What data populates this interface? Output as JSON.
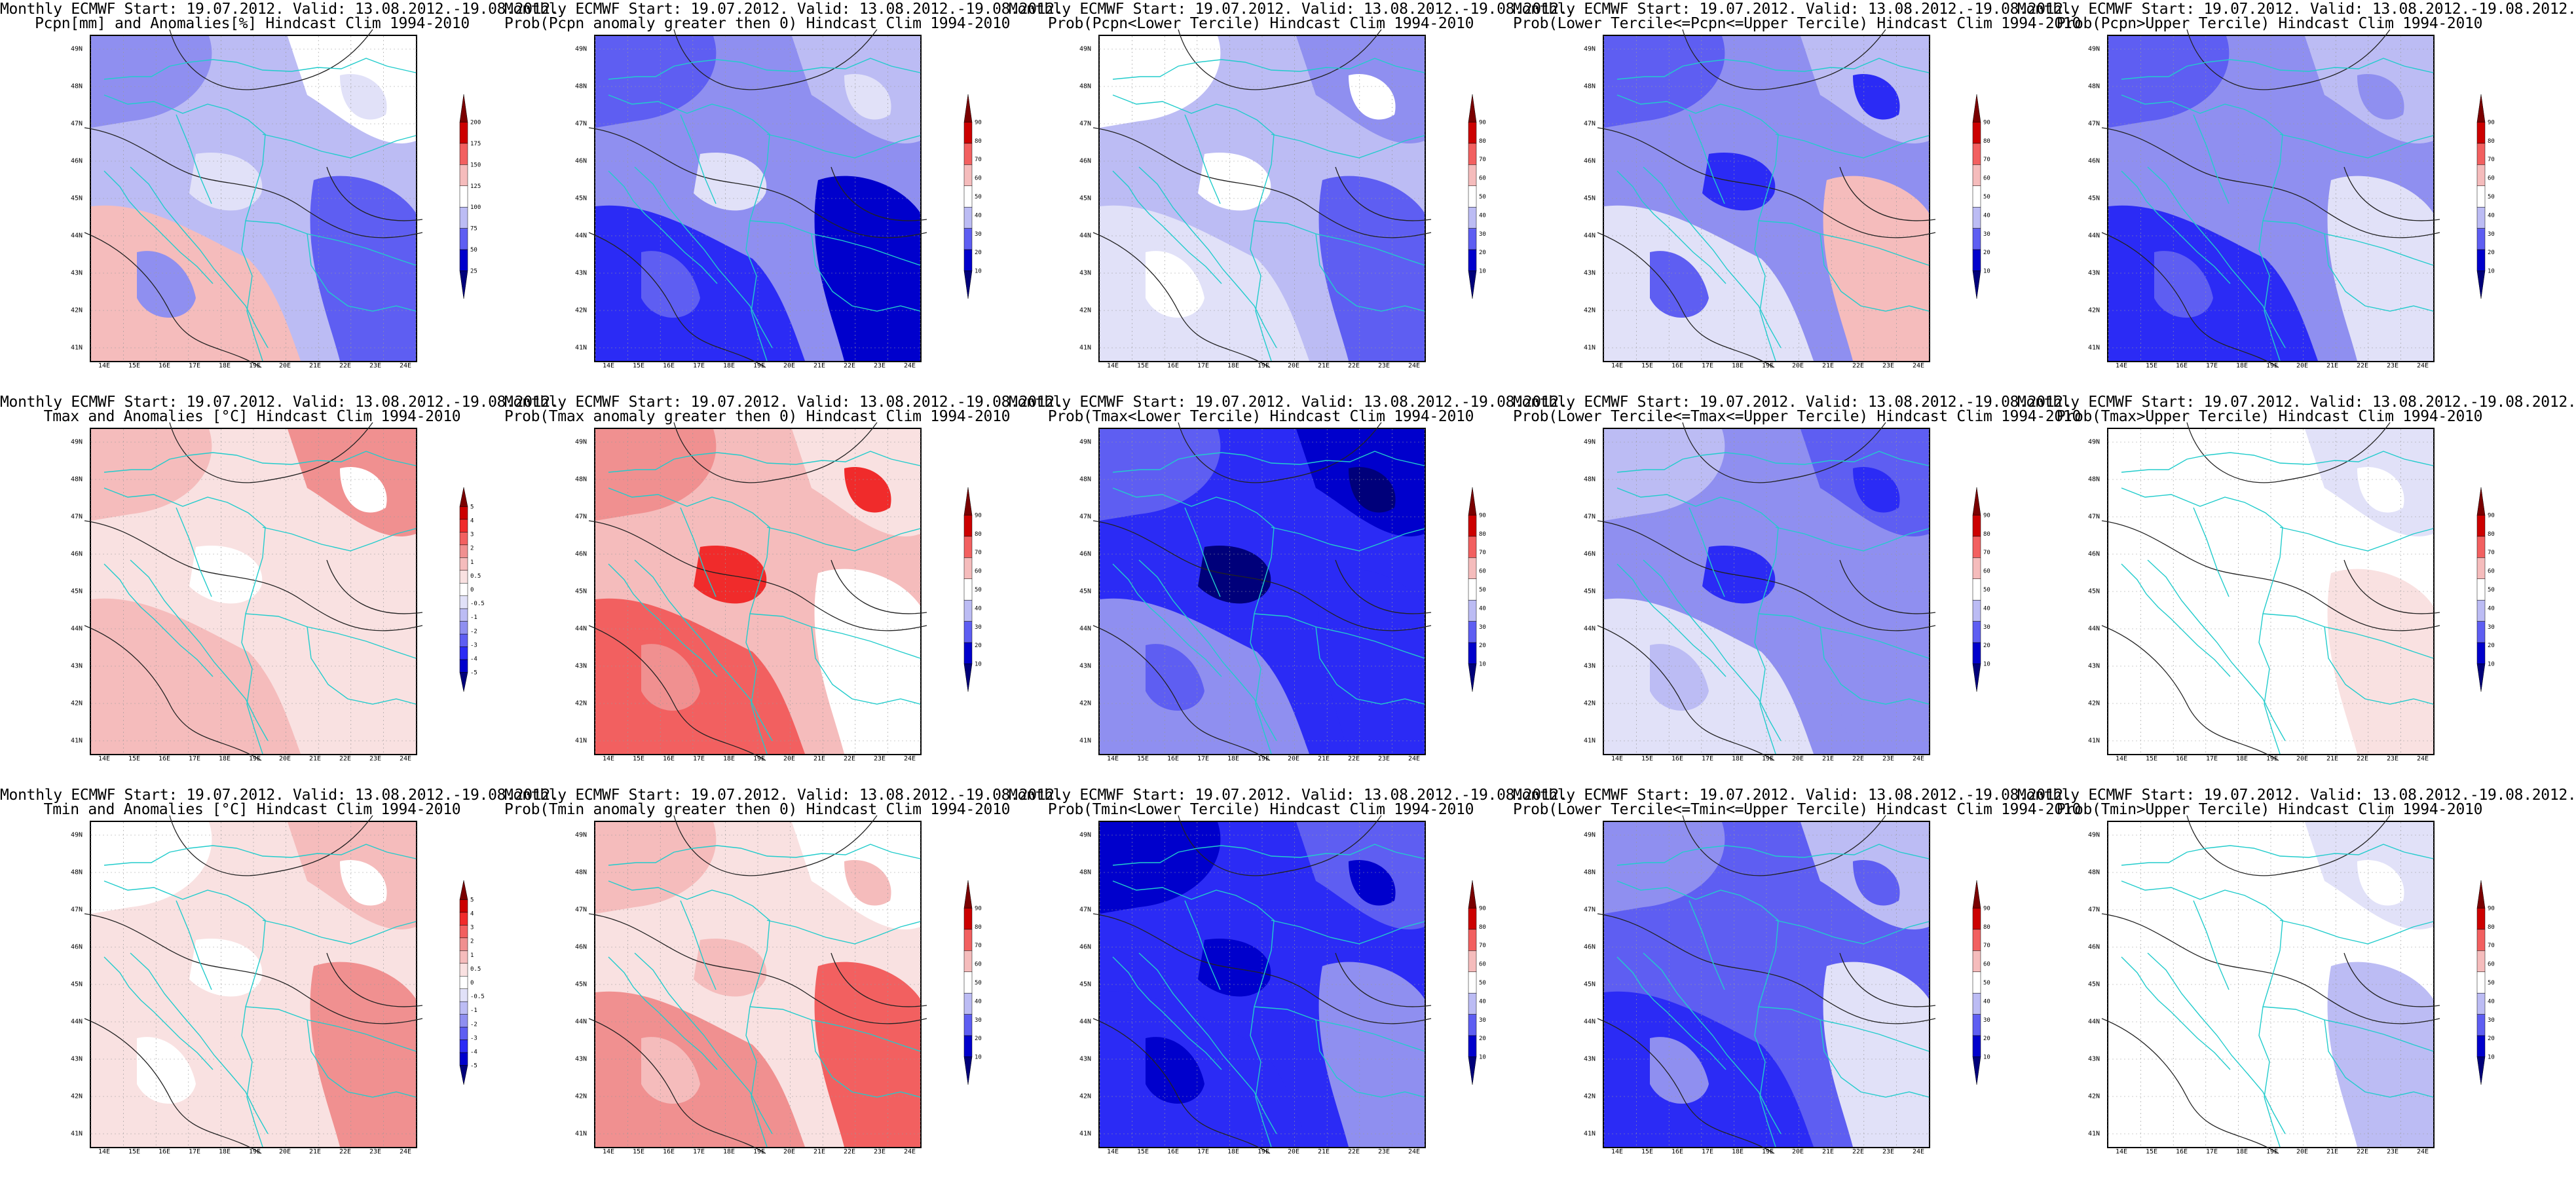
{
  "colors": {
    "blues": [
      "#00007a",
      "#0000cc",
      "#2b2bf5",
      "#5e5ef2",
      "#8f8ff0",
      "#bcbcf4",
      "#e1e1f8"
    ],
    "reds": [
      "#7a0000",
      "#cc0000",
      "#f02b2b",
      "#f26060",
      "#f09090",
      "#f5bcbc",
      "#f9e1e1"
    ],
    "coast": "#22cccc",
    "contour": "#222222"
  },
  "map": {
    "lon_labels": [
      "14E",
      "15E",
      "16E",
      "17E",
      "18E",
      "19E",
      "20E",
      "21E",
      "22E",
      "23E",
      "24E"
    ],
    "lat_labels": [
      "49N",
      "48N",
      "47N",
      "46N",
      "45N",
      "44N",
      "43N",
      "42N",
      "41N"
    ]
  },
  "panels": [
    {
      "id": "pcpn-anom",
      "title_line1": "Monthly ECMWF Start: 19.07.2012. Valid: 13.08.2012.-19.08.2012.",
      "title_line2": "Pcpn[mm] and Anomalies[%] Hindcast Clim 1994-2010",
      "bar": [
        "#00007a",
        "#0000cc",
        "#5e5ef2",
        "#bcbcf4",
        "#ffffff",
        "#f5bcbc",
        "#f26060",
        "#cc0000",
        "#7a0000"
      ],
      "bar_labels": [
        "200",
        "175",
        "150",
        "125",
        "100",
        "75",
        "50",
        "25"
      ],
      "palette": [
        "#bcbcf4",
        "#8f8ff0",
        "#ffffff",
        "#f5bcbc",
        "#5e5ef2",
        "#e1e1f8"
      ]
    },
    {
      "id": "pcpn-prob-pos",
      "title_line1": "Monthly ECMWF Start: 19.07.2012. Valid: 13.08.2012.-19.08.2012.",
      "title_line2": "Prob(Pcpn anomaly greater then 0) Hindcast Clim 1994-2010",
      "bar": [
        "#00007a",
        "#0000cc",
        "#5e5ef2",
        "#bcbcf4",
        "#ffffff",
        "#f5bcbc",
        "#f26060",
        "#cc0000",
        "#7a0000"
      ],
      "bar_labels": [
        "90",
        "80",
        "70",
        "60",
        "50",
        "40",
        "30",
        "20",
        "10"
      ],
      "palette": [
        "#8f8ff0",
        "#5e5ef2",
        "#bcbcf4",
        "#2b2bf5",
        "#0000cc",
        "#e1e1f8"
      ]
    },
    {
      "id": "pcpn-lower",
      "title_line1": "Monthly ECMWF Start: 19.07.2012. Valid: 13.08.2012.-19.08.2012.",
      "title_line2": "Prob(Pcpn<Lower Tercile) Hindcast Clim 1994-2010",
      "bar": [
        "#00007a",
        "#0000cc",
        "#5e5ef2",
        "#bcbcf4",
        "#ffffff",
        "#f5bcbc",
        "#f26060",
        "#cc0000",
        "#7a0000"
      ],
      "bar_labels": [
        "90",
        "80",
        "70",
        "60",
        "50",
        "40",
        "30",
        "20",
        "10"
      ],
      "palette": [
        "#bcbcf4",
        "#ffffff",
        "#8f8ff0",
        "#e1e1f8",
        "#5e5ef2",
        "#ffffff"
      ]
    },
    {
      "id": "pcpn-middle",
      "title_line1": "Monthly ECMWF Start: 19.07.2012. Valid: 13.08.2012.-19.08.2012.",
      "title_line2": "Prob(Lower Tercile<=Pcpn<=Upper Tercile) Hindcast Clim 1994-2010",
      "bar": [
        "#00007a",
        "#0000cc",
        "#5e5ef2",
        "#bcbcf4",
        "#ffffff",
        "#f5bcbc",
        "#f26060",
        "#cc0000",
        "#7a0000"
      ],
      "bar_labels": [
        "90",
        "80",
        "70",
        "60",
        "50",
        "40",
        "30",
        "20",
        "10"
      ],
      "palette": [
        "#8f8ff0",
        "#5e5ef2",
        "#bcbcf4",
        "#e1e1f8",
        "#f5bcbc",
        "#2b2bf5"
      ]
    },
    {
      "id": "pcpn-upper",
      "title_line1": "Monthly ECMWF Start: 19.07.2012. Valid: 13.08.2012.-19.08.2012.",
      "title_line2": "Prob(Pcpn>Upper Tercile) Hindcast Clim 1994-2010",
      "bar": [
        "#00007a",
        "#0000cc",
        "#5e5ef2",
        "#bcbcf4",
        "#ffffff",
        "#f5bcbc",
        "#f26060",
        "#cc0000",
        "#7a0000"
      ],
      "bar_labels": [
        "90",
        "80",
        "70",
        "60",
        "50",
        "40",
        "30",
        "20",
        "10"
      ],
      "palette": [
        "#8f8ff0",
        "#5e5ef2",
        "#bcbcf4",
        "#2b2bf5",
        "#e1e1f8",
        "#8f8ff0"
      ]
    },
    {
      "id": "tmax-anom",
      "title_line1": "Monthly ECMWF Start: 19.07.2012. Valid: 13.08.2012.-19.08.2012.",
      "title_line2": "Tmax and Anomalies [°C] Hindcast Clim 1994-2010",
      "bar": [
        "#00007a",
        "#0000cc",
        "#2b2bf5",
        "#5e5ef2",
        "#8f8ff0",
        "#bcbcf4",
        "#e1e1f8",
        "#ffffff",
        "#f9e1e1",
        "#f5bcbc",
        "#f09090",
        "#f26060",
        "#f02b2b",
        "#cc0000",
        "#7a0000"
      ],
      "bar_labels": [
        "5",
        "4",
        "3",
        "2",
        "1",
        "0.5",
        "0",
        "-0.5",
        "-1",
        "-2",
        "-3",
        "-4",
        "-5"
      ],
      "palette": [
        "#f9e1e1",
        "#f5bcbc",
        "#f09090",
        "#f5bcbc",
        "#f9e1e1",
        "#ffffff"
      ]
    },
    {
      "id": "tmax-prob-pos",
      "title_line1": "Monthly ECMWF Start: 19.07.2012. Valid: 13.08.2012.-19.08.2012.",
      "title_line2": "Prob(Tmax anomaly greater then 0) Hindcast Clim 1994-2010",
      "bar": [
        "#00007a",
        "#0000cc",
        "#5e5ef2",
        "#bcbcf4",
        "#ffffff",
        "#f5bcbc",
        "#f26060",
        "#cc0000",
        "#7a0000"
      ],
      "bar_labels": [
        "90",
        "80",
        "70",
        "60",
        "50",
        "40",
        "30",
        "20",
        "10"
      ],
      "palette": [
        "#f5bcbc",
        "#f09090",
        "#f9e1e1",
        "#f26060",
        "#ffffff",
        "#f02b2b"
      ]
    },
    {
      "id": "tmax-lower",
      "title_line1": "Monthly ECMWF Start: 19.07.2012. Valid: 13.08.2012.-19.08.2012.",
      "title_line2": "Prob(Tmax<Lower Tercile) Hindcast Clim 1994-2010",
      "bar": [
        "#00007a",
        "#0000cc",
        "#5e5ef2",
        "#bcbcf4",
        "#ffffff",
        "#f5bcbc",
        "#f26060",
        "#cc0000",
        "#7a0000"
      ],
      "bar_labels": [
        "90",
        "80",
        "70",
        "60",
        "50",
        "40",
        "30",
        "20",
        "10"
      ],
      "palette": [
        "#2b2bf5",
        "#5e5ef2",
        "#0000cc",
        "#8f8ff0",
        "#2b2bf5",
        "#00007a"
      ]
    },
    {
      "id": "tmax-middle",
      "title_line1": "Monthly ECMWF Start: 19.07.2012. Valid: 13.08.2012.-19.08.2012.",
      "title_line2": "Prob(Lower Tercile<=Tmax<=Upper Tercile) Hindcast Clim 1994-2010",
      "bar": [
        "#00007a",
        "#0000cc",
        "#5e5ef2",
        "#bcbcf4",
        "#ffffff",
        "#f5bcbc",
        "#f26060",
        "#cc0000",
        "#7a0000"
      ],
      "bar_labels": [
        "90",
        "80",
        "70",
        "60",
        "50",
        "40",
        "30",
        "20",
        "10"
      ],
      "palette": [
        "#8f8ff0",
        "#bcbcf4",
        "#5e5ef2",
        "#e1e1f8",
        "#8f8ff0",
        "#2b2bf5"
      ]
    },
    {
      "id": "tmax-upper",
      "title_line1": "Monthly ECMWF Start: 19.07.2012. Valid: 13.08.2012.-19.08.2012.",
      "title_line2": "Prob(Tmax>Upper Tercile) Hindcast Clim 1994-2010",
      "bar": [
        "#00007a",
        "#0000cc",
        "#5e5ef2",
        "#bcbcf4",
        "#ffffff",
        "#f5bcbc",
        "#f26060",
        "#cc0000",
        "#7a0000"
      ],
      "bar_labels": [
        "90",
        "80",
        "70",
        "60",
        "50",
        "40",
        "30",
        "20",
        "10"
      ],
      "palette": [
        "#ffffff",
        "#ffffff",
        "#e1e1f8",
        "#ffffff",
        "#f9e1e1",
        "#ffffff"
      ]
    },
    {
      "id": "tmin-anom",
      "title_line1": "Monthly ECMWF Start: 19.07.2012. Valid: 13.08.2012.-19.08.2012.",
      "title_line2": "Tmin and Anomalies [°C] Hindcast Clim 1994-2010",
      "bar": [
        "#00007a",
        "#0000cc",
        "#2b2bf5",
        "#5e5ef2",
        "#8f8ff0",
        "#bcbcf4",
        "#e1e1f8",
        "#ffffff",
        "#f9e1e1",
        "#f5bcbc",
        "#f09090",
        "#f26060",
        "#f02b2b",
        "#cc0000",
        "#7a0000"
      ],
      "bar_labels": [
        "5",
        "4",
        "3",
        "2",
        "1",
        "0.5",
        "0",
        "-0.5",
        "-1",
        "-2",
        "-3",
        "-4",
        "-5"
      ],
      "palette": [
        "#f9e1e1",
        "#ffffff",
        "#f5bcbc",
        "#f9e1e1",
        "#f09090",
        "#ffffff"
      ]
    },
    {
      "id": "tmin-prob-pos",
      "title_line1": "Monthly ECMWF Start: 19.07.2012. Valid: 13.08.2012.-19.08.2012.",
      "title_line2": "Prob(Tmin anomaly greater then 0) Hindcast Clim 1994-2010",
      "bar": [
        "#00007a",
        "#0000cc",
        "#5e5ef2",
        "#bcbcf4",
        "#ffffff",
        "#f5bcbc",
        "#f26060",
        "#cc0000",
        "#7a0000"
      ],
      "bar_labels": [
        "90",
        "80",
        "70",
        "60",
        "50",
        "40",
        "30",
        "20",
        "10"
      ],
      "palette": [
        "#f9e1e1",
        "#f5bcbc",
        "#ffffff",
        "#f09090",
        "#f26060",
        "#f5bcbc"
      ]
    },
    {
      "id": "tmin-lower",
      "title_line1": "Monthly ECMWF Start: 19.07.2012. Valid: 13.08.2012.-19.08.2012.",
      "title_line2": "Prob(Tmin<Lower Tercile) Hindcast Clim 1994-2010",
      "bar": [
        "#00007a",
        "#0000cc",
        "#5e5ef2",
        "#bcbcf4",
        "#ffffff",
        "#f5bcbc",
        "#f26060",
        "#cc0000",
        "#7a0000"
      ],
      "bar_labels": [
        "90",
        "80",
        "70",
        "60",
        "50",
        "40",
        "30",
        "20",
        "10"
      ],
      "palette": [
        "#2b2bf5",
        "#0000cc",
        "#5e5ef2",
        "#2b2bf5",
        "#8f8ff0",
        "#0000cc"
      ]
    },
    {
      "id": "tmin-middle",
      "title_line1": "Monthly ECMWF Start: 19.07.2012. Valid: 13.08.2012.-19.08.2012.",
      "title_line2": "Prob(Lower Tercile<=Tmin<=Upper Tercile) Hindcast Clim 1994-2010",
      "bar": [
        "#00007a",
        "#0000cc",
        "#5e5ef2",
        "#bcbcf4",
        "#ffffff",
        "#f5bcbc",
        "#f26060",
        "#cc0000",
        "#7a0000"
      ],
      "bar_labels": [
        "90",
        "80",
        "70",
        "60",
        "50",
        "40",
        "30",
        "20",
        "10"
      ],
      "palette": [
        "#5e5ef2",
        "#8f8ff0",
        "#bcbcf4",
        "#2b2bf5",
        "#e1e1f8",
        "#5e5ef2"
      ]
    },
    {
      "id": "tmin-upper",
      "title_line1": "Monthly ECMWF Start: 19.07.2012. Valid: 13.08.2012.-19.08.2012.",
      "title_line2": "Prob(Tmin>Upper Tercile) Hindcast Clim 1994-2010",
      "bar": [
        "#00007a",
        "#0000cc",
        "#5e5ef2",
        "#bcbcf4",
        "#ffffff",
        "#f5bcbc",
        "#f26060",
        "#cc0000",
        "#7a0000"
      ],
      "bar_labels": [
        "90",
        "80",
        "70",
        "60",
        "50",
        "40",
        "30",
        "20",
        "10"
      ],
      "palette": [
        "#ffffff",
        "#ffffff",
        "#e1e1f8",
        "#ffffff",
        "#bcbcf4",
        "#ffffff"
      ]
    }
  ]
}
